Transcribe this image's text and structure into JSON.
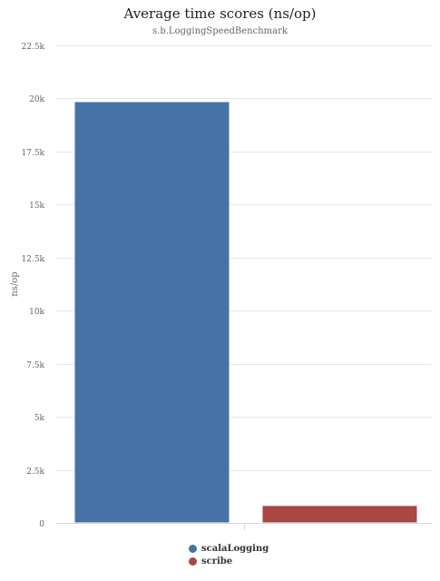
{
  "chart_data": {
    "type": "bar",
    "title": "Average time scores (ns/op)",
    "subtitle": "s.b.LoggingSpeedBenchmark",
    "xlabel": "",
    "ylabel": "ns/op",
    "ylim": [
      0,
      22500
    ],
    "yticks": [
      0,
      2500,
      5000,
      7500,
      10000,
      12500,
      15000,
      17500,
      20000,
      22500
    ],
    "ytick_labels": [
      "0",
      "2.5k",
      "5k",
      "7.5k",
      "10k",
      "12.5k",
      "15k",
      "17.5k",
      "20k",
      "22.5k"
    ],
    "categories": [
      ""
    ],
    "series": [
      {
        "name": "scalaLogging",
        "values": [
          19850
        ],
        "color": "#4572A7"
      },
      {
        "name": "scribe",
        "values": [
          820
        ],
        "color": "#AA4643"
      }
    ],
    "grid": true,
    "legend": "bottom-center"
  }
}
